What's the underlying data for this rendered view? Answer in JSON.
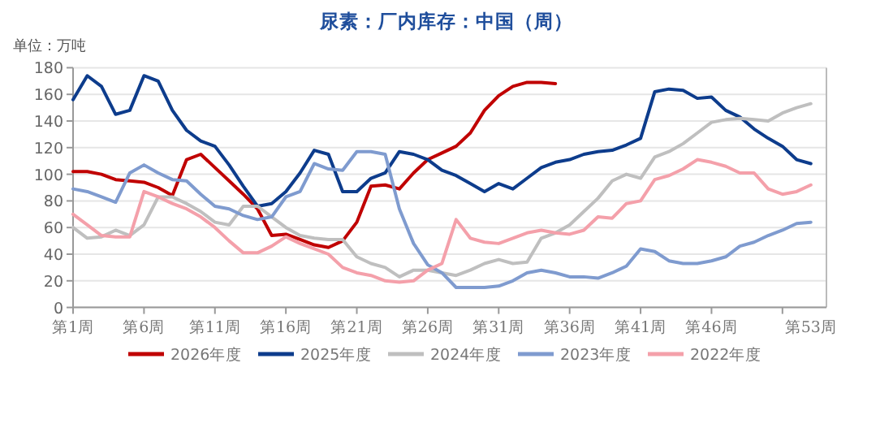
{
  "chart_data": {
    "type": "line",
    "title": "尿素：厂内库存：中国（周）",
    "ylabel": "单位：万吨",
    "categories": [
      "第1周",
      null,
      null,
      null,
      null,
      "第6周",
      null,
      null,
      null,
      null,
      "第11周",
      null,
      null,
      null,
      null,
      "第16周",
      null,
      null,
      null,
      null,
      "第21周",
      null,
      null,
      null,
      null,
      "第26周",
      null,
      null,
      null,
      null,
      "第31周",
      null,
      null,
      null,
      null,
      "第36周",
      null,
      null,
      null,
      null,
      "第41周",
      null,
      null,
      null,
      null,
      "第46周",
      null,
      null,
      null,
      null,
      null,
      null,
      "第53周"
    ],
    "ylim": [
      0,
      180
    ],
    "yticks": [
      0,
      20,
      40,
      60,
      80,
      100,
      120,
      140,
      160,
      180
    ],
    "grid": "y",
    "legend": "bottom",
    "marker": "none",
    "line_style": "solid",
    "series": [
      {
        "name": "2026年度",
        "color": "#c00000",
        "values": [
          102,
          102,
          100,
          96,
          95,
          94,
          90,
          84,
          111,
          115,
          105,
          95,
          85,
          74,
          54,
          55,
          51,
          47,
          45,
          50,
          64,
          91,
          92,
          89,
          101,
          111,
          116,
          121,
          131,
          148,
          159,
          166,
          169,
          169,
          168,
          null,
          null,
          null,
          null,
          null,
          null,
          null,
          null,
          null,
          null,
          null,
          null,
          null,
          null,
          null,
          null,
          null,
          null
        ]
      },
      {
        "name": "2025年度",
        "color": "#0d3c8c",
        "values": [
          156,
          174,
          166,
          145,
          148,
          174,
          170,
          148,
          133,
          125,
          121,
          107,
          91,
          76,
          78,
          87,
          101,
          118,
          115,
          87,
          87,
          97,
          101,
          117,
          115,
          111,
          103,
          99,
          93,
          87,
          93,
          89,
          97,
          105,
          109,
          111,
          115,
          117,
          118,
          122,
          127,
          162,
          164,
          163,
          157,
          158,
          148,
          143,
          134,
          127,
          121,
          111,
          108
        ]
      },
      {
        "name": "2024年度",
        "color": "#bfbfbf",
        "values": [
          60,
          52,
          53,
          58,
          54,
          62,
          83,
          83,
          78,
          72,
          64,
          62,
          76,
          76,
          68,
          60,
          54,
          52,
          51,
          51,
          38,
          33,
          30,
          23,
          28,
          28,
          26,
          24,
          28,
          33,
          36,
          33,
          34,
          52,
          56,
          62,
          72,
          82,
          95,
          100,
          97,
          113,
          117,
          123,
          131,
          139,
          141,
          142,
          141,
          140,
          146,
          150,
          153
        ]
      },
      {
        "name": "2023年度",
        "color": "#7f9bcf",
        "values": [
          89,
          87,
          83,
          79,
          101,
          107,
          101,
          96,
          95,
          85,
          76,
          74,
          69,
          66,
          68,
          83,
          87,
          108,
          104,
          103,
          117,
          117,
          115,
          74,
          48,
          32,
          26,
          15,
          15,
          15,
          16,
          20,
          26,
          28,
          26,
          23,
          23,
          22,
          26,
          31,
          44,
          42,
          35,
          33,
          33,
          35,
          38,
          46,
          49,
          54,
          58,
          63,
          64
        ]
      },
      {
        "name": "2022年度",
        "color": "#f4a0aa",
        "values": [
          70,
          62,
          54,
          53,
          53,
          87,
          83,
          78,
          74,
          68,
          60,
          50,
          41,
          41,
          46,
          53,
          48,
          44,
          40,
          30,
          26,
          24,
          20,
          19,
          20,
          28,
          33,
          66,
          52,
          49,
          48,
          52,
          56,
          58,
          56,
          55,
          58,
          68,
          67,
          78,
          80,
          96,
          99,
          104,
          111,
          109,
          106,
          101,
          101,
          89,
          85,
          87,
          92
        ]
      }
    ]
  }
}
